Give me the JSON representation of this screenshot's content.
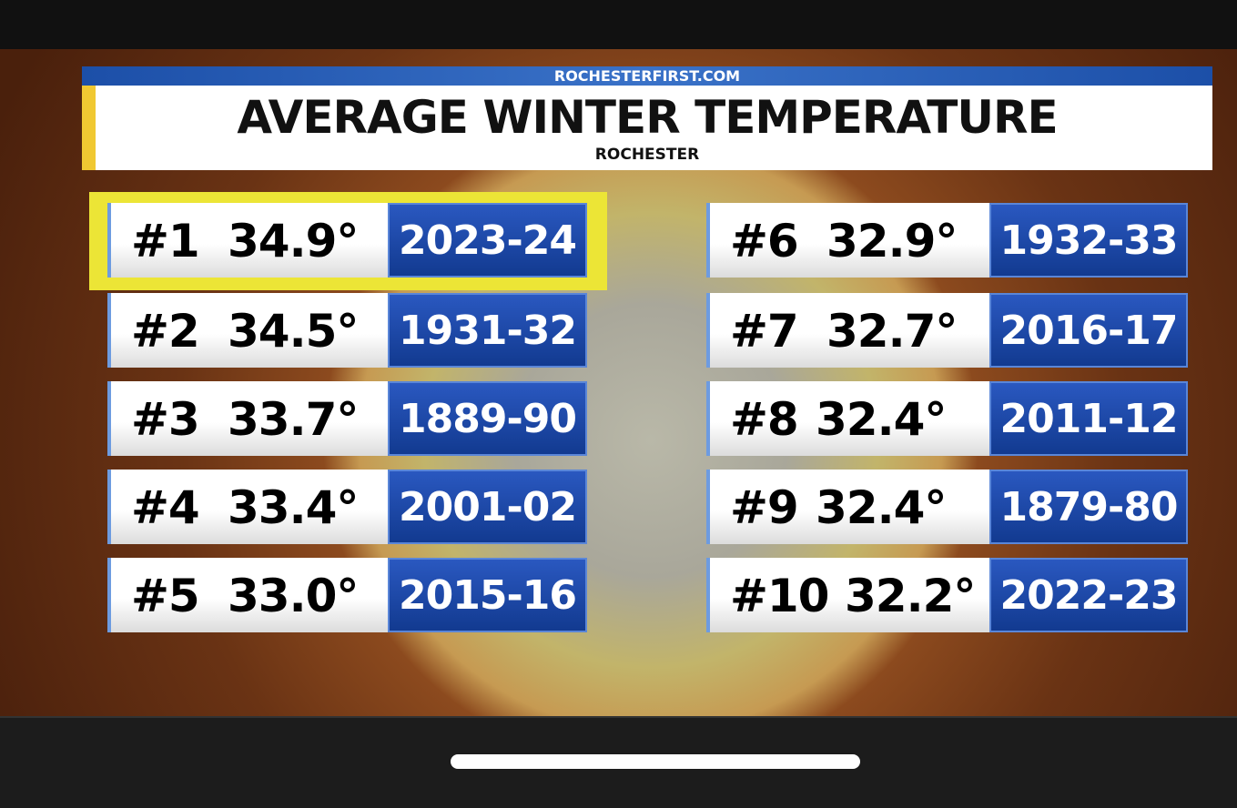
{
  "header": {
    "site": "ROCHESTERFIRST.COM",
    "title": "AVERAGE WINTER TEMPERATURE",
    "subtitle": "ROCHESTER"
  },
  "rankings": [
    {
      "rank": "#1",
      "temperature": "34.9°",
      "season": "2023-24"
    },
    {
      "rank": "#2",
      "temperature": "34.5°",
      "season": "1931-32"
    },
    {
      "rank": "#3",
      "temperature": "33.7°",
      "season": "1889-90"
    },
    {
      "rank": "#4",
      "temperature": "33.4°",
      "season": "2001-02"
    },
    {
      "rank": "#5",
      "temperature": "33.0°",
      "season": "2015-16"
    },
    {
      "rank": "#6",
      "temperature": "32.9°",
      "season": "1932-33"
    },
    {
      "rank": "#7",
      "temperature": "32.7°",
      "season": "2016-17"
    },
    {
      "rank": "#8",
      "temperature": "32.4°",
      "season": "2011-12"
    },
    {
      "rank": "#9",
      "temperature": "32.4°",
      "season": "1879-80"
    },
    {
      "rank": "#10",
      "temperature": "32.2°",
      "season": "2022-23"
    }
  ]
}
